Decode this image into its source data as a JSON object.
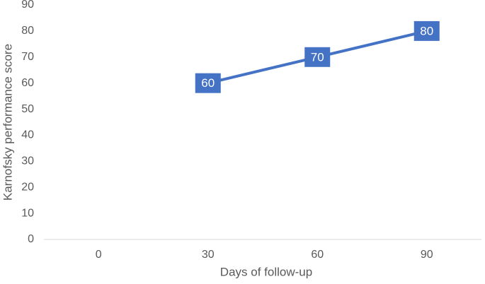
{
  "chart_data": {
    "type": "line",
    "x_label": "Days of follow-up",
    "y_label": "Karnofsky performance score",
    "categories": [
      "0",
      "30",
      "60",
      "90"
    ],
    "series": [
      {
        "name": "Karnofsky performance score",
        "color": "#4472c4",
        "values": [
          null,
          60,
          70,
          80
        ]
      }
    ],
    "ylim": [
      0,
      90
    ],
    "yticks": [
      0,
      10,
      20,
      30,
      40,
      50,
      60,
      70,
      80,
      90
    ],
    "grid": false,
    "data_labels": true
  }
}
